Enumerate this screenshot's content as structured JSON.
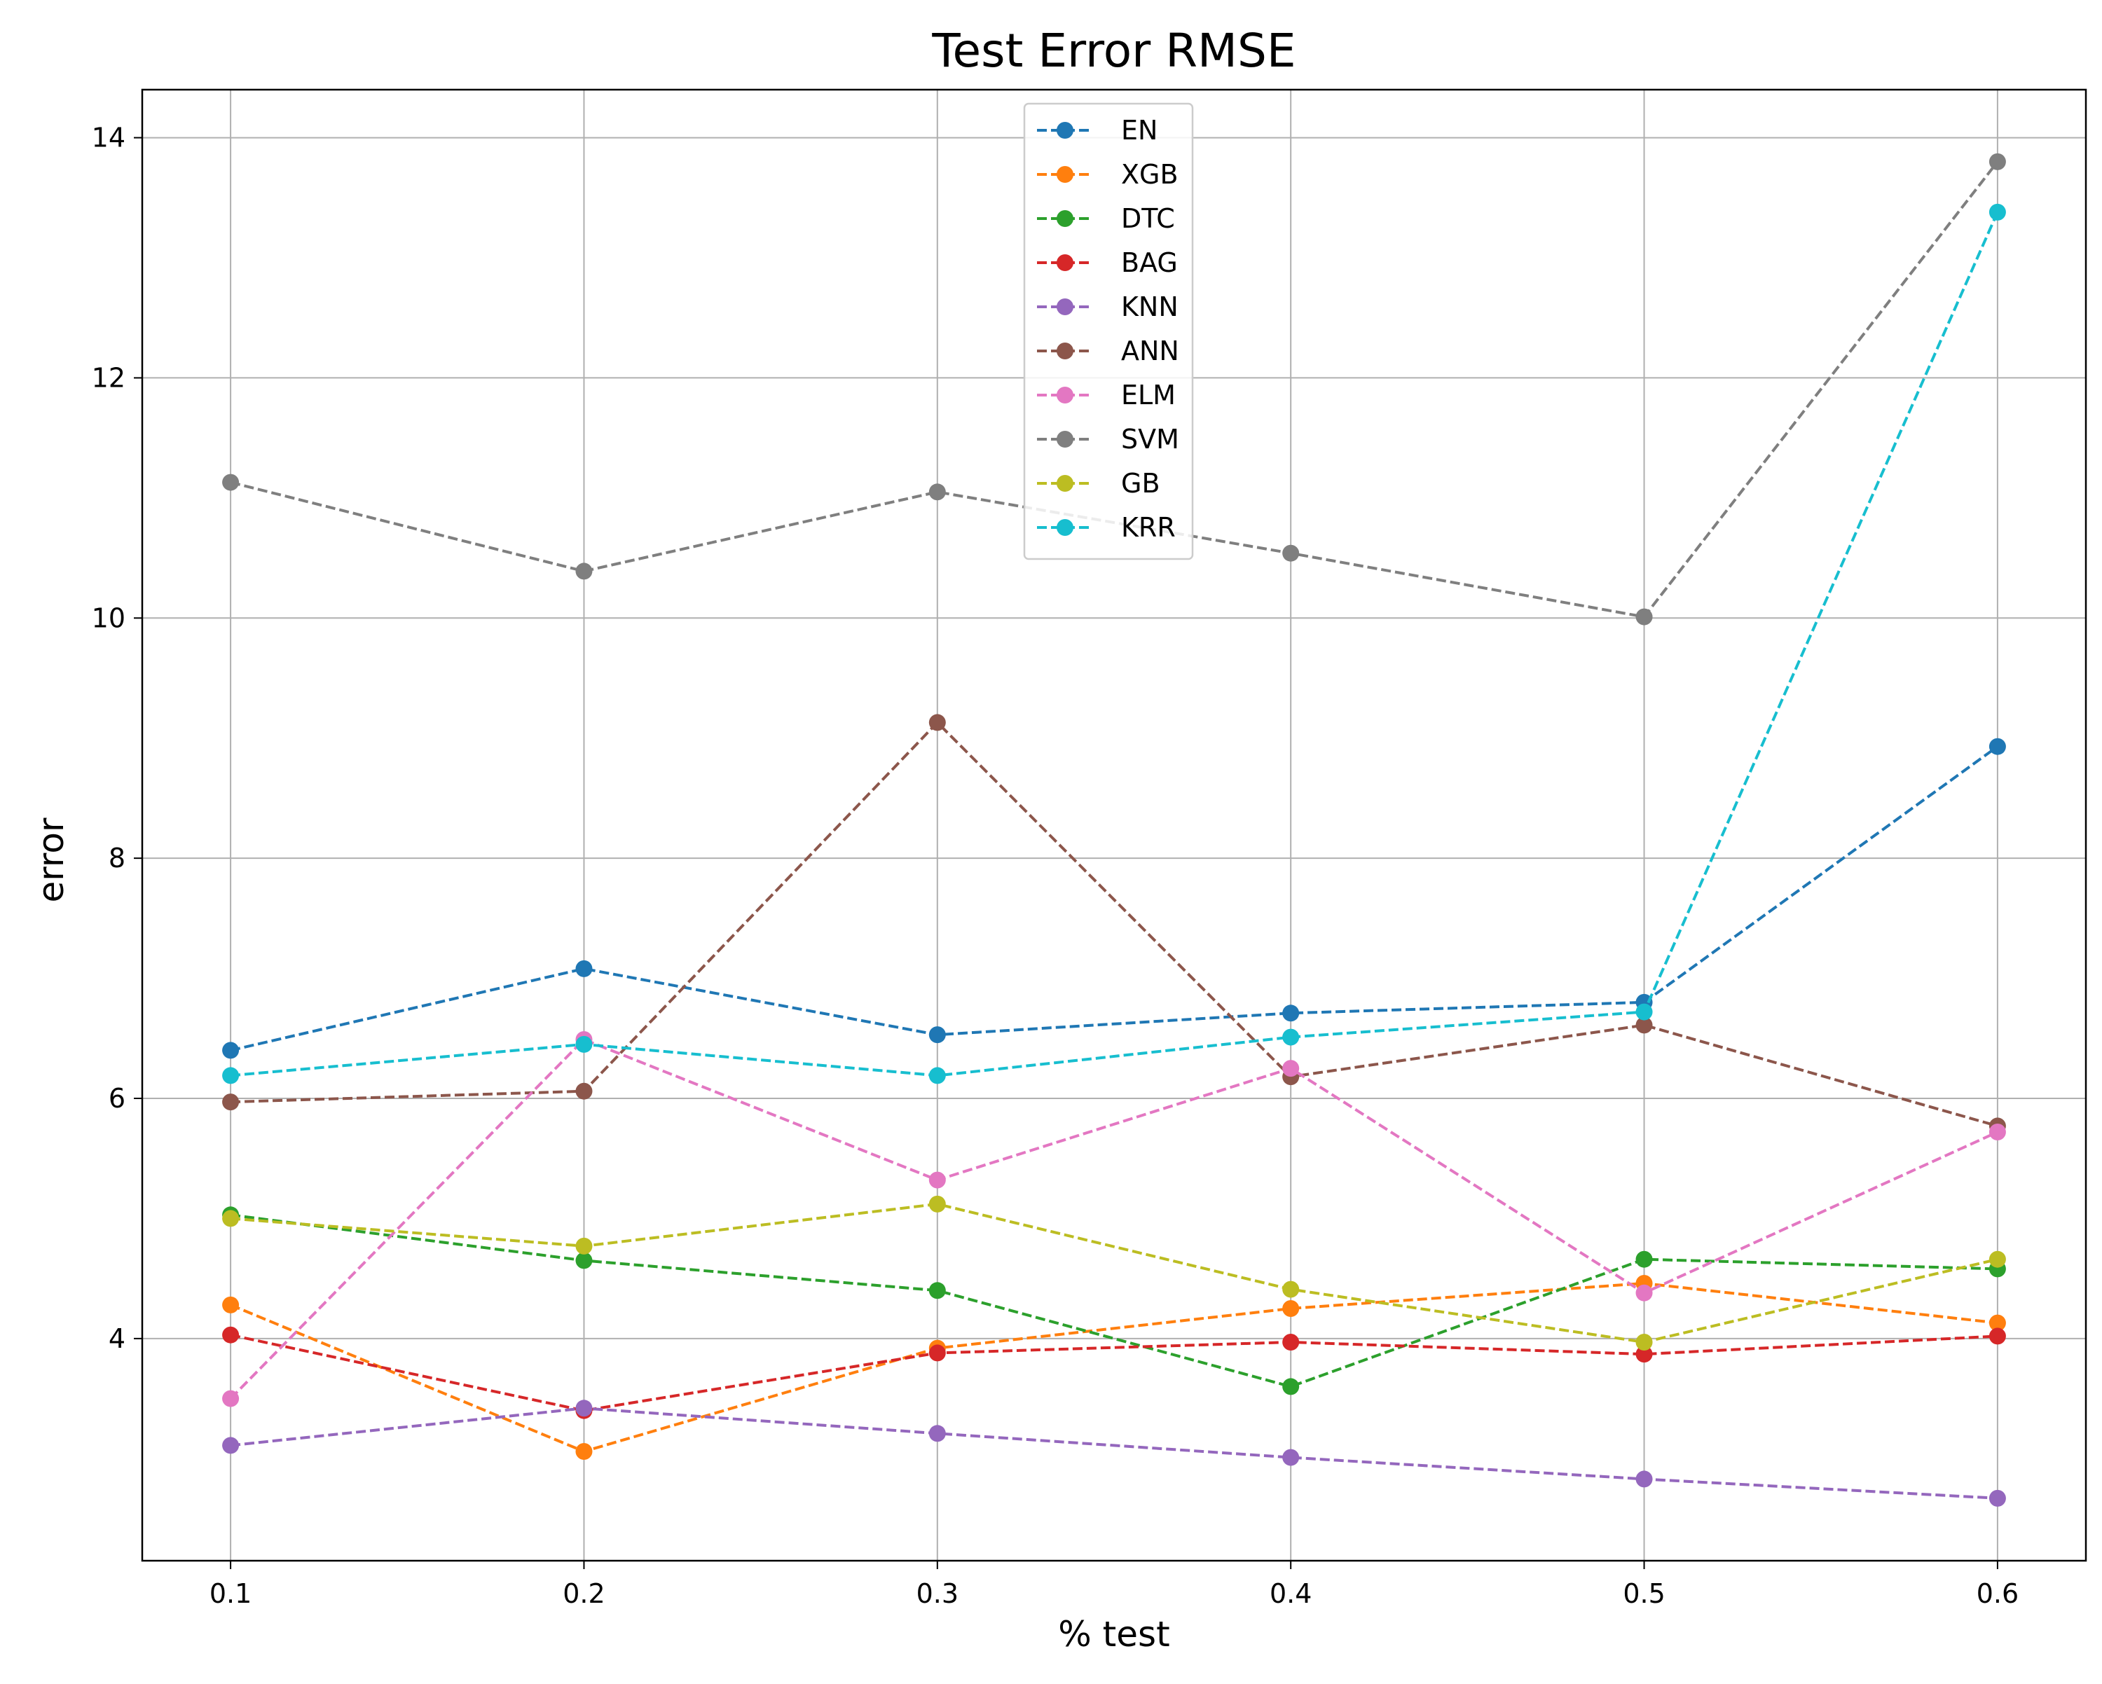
{
  "chart_data": {
    "type": "line",
    "title": "Test Error RMSE",
    "xlabel": "% test",
    "ylabel": "error",
    "x": [
      0.1,
      0.2,
      0.3,
      0.4,
      0.5,
      0.6
    ],
    "xticks": [
      "0.1",
      "0.2",
      "0.3",
      "0.4",
      "0.5",
      "0.6"
    ],
    "yticks": [
      "4",
      "6",
      "8",
      "10",
      "12",
      "14"
    ],
    "ytick_values": [
      4,
      6,
      8,
      10,
      12,
      14
    ],
    "xlim": [
      0.075,
      0.625
    ],
    "ylim": [
      2.15,
      14.4
    ],
    "grid": true,
    "legend_position": "top-center",
    "series": [
      {
        "name": "EN",
        "color": "#1f77b4",
        "values": [
          6.4,
          7.08,
          6.53,
          6.71,
          6.8,
          8.93
        ]
      },
      {
        "name": "XGB",
        "color": "#ff7f0e",
        "values": [
          4.28,
          3.06,
          3.92,
          4.25,
          4.46,
          4.13
        ]
      },
      {
        "name": "DTC",
        "color": "#2ca02c",
        "values": [
          5.03,
          4.65,
          4.4,
          3.6,
          4.66,
          4.58
        ]
      },
      {
        "name": "BAG",
        "color": "#d62728",
        "values": [
          4.03,
          3.4,
          3.88,
          3.97,
          3.87,
          4.02
        ]
      },
      {
        "name": "KNN",
        "color": "#9467bd",
        "values": [
          3.11,
          3.42,
          3.21,
          3.01,
          2.83,
          2.67
        ]
      },
      {
        "name": "ANN",
        "color": "#8c564b",
        "values": [
          5.97,
          6.06,
          9.13,
          6.18,
          6.61,
          5.77
        ]
      },
      {
        "name": "ELM",
        "color": "#e377c2",
        "values": [
          3.5,
          6.49,
          5.32,
          6.25,
          4.38,
          5.72
        ]
      },
      {
        "name": "SVM",
        "color": "#7f7f7f",
        "values": [
          11.13,
          10.39,
          11.05,
          10.54,
          10.01,
          13.8
        ]
      },
      {
        "name": "GB",
        "color": "#bcbd22",
        "values": [
          5.0,
          4.77,
          5.12,
          4.41,
          3.97,
          4.66
        ]
      },
      {
        "name": "KRR",
        "color": "#17becf",
        "values": [
          6.19,
          6.45,
          6.19,
          6.51,
          6.72,
          13.38
        ]
      }
    ]
  }
}
